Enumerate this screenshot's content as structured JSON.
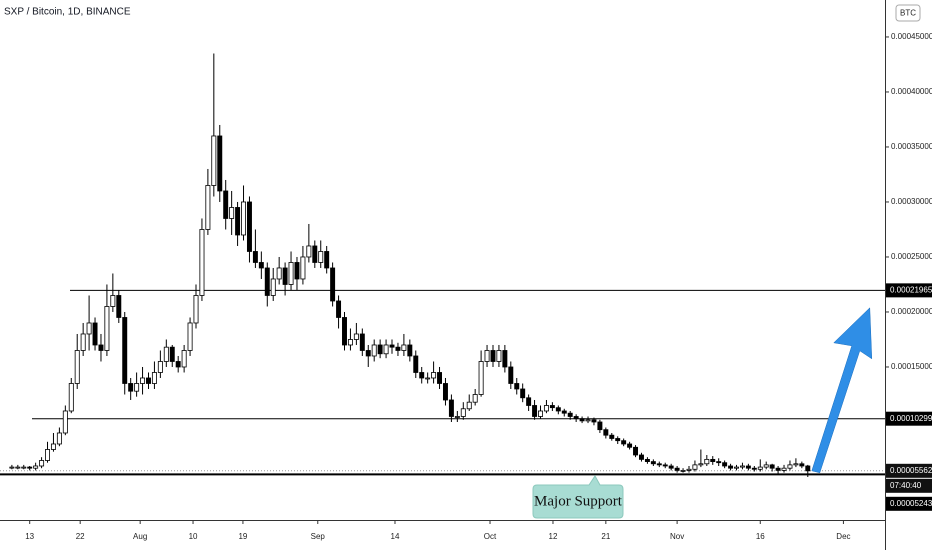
{
  "chart_data": {
    "type": "candlestick",
    "title": "SXP / Bitcoin, 1D, BINANCE",
    "currency": "BTC",
    "annotation": "Major Support",
    "countdown": "07:40:40",
    "last_price": 5.562e-05,
    "levels": [
      0.00021965,
      0.00010299,
      5.243e-05
    ],
    "up_color": "#ffffff",
    "down_color": "#000000",
    "arrow_color": "#2f8ee6",
    "xlim": [
      -2,
      147
    ],
    "xticks": [
      {
        "value": 3,
        "label": "13"
      },
      {
        "value": 11.5,
        "label": "22"
      },
      {
        "value": 21.6,
        "label": "Aug"
      },
      {
        "value": 30.5,
        "label": "10"
      },
      {
        "value": 38.9,
        "label": "19"
      },
      {
        "value": 51.5,
        "label": "Sep"
      },
      {
        "value": 64.5,
        "label": "14"
      },
      {
        "value": 80.5,
        "label": "Oct"
      },
      {
        "value": 91.1,
        "label": "12"
      },
      {
        "value": 100,
        "label": "21"
      },
      {
        "value": 112,
        "label": "Nov"
      },
      {
        "value": 126,
        "label": "16"
      },
      {
        "value": 140,
        "label": "Dec"
      }
    ],
    "ylim": [
      1.09e-05,
      0.0004836
    ],
    "yticks": [
      {
        "value": 0.00045,
        "label": "0.00045000"
      },
      {
        "value": 0.0004,
        "label": "0.00040000"
      },
      {
        "value": 0.00035,
        "label": "0.00035000"
      },
      {
        "value": 0.0003,
        "label": "0.00030000"
      },
      {
        "value": 0.00025,
        "label": "0.00025000"
      },
      {
        "value": 0.0002,
        "label": "0.00020000"
      },
      {
        "value": 0.00015,
        "label": "0.00015000"
      }
    ],
    "open": [
      5.9e-05,
      5.9e-05,
      5.9e-05,
      5.9e-05,
      5.8e-05,
      6e-05,
      6.5e-05,
      7.5e-05,
      8e-05,
      9e-05,
      0.00011,
      0.000135,
      0.000165,
      0.00018,
      0.00019,
      0.00017,
      0.000165,
      0.000205,
      0.000215,
      0.000195,
      0.000135,
      0.000128,
      0.000135,
      0.00014,
      0.000135,
      0.000145,
      0.000155,
      0.000168,
      0.000155,
      0.00015,
      0.000165,
      0.00019,
      0.000215,
      0.000275,
      0.000315,
      0.00036,
      0.00031,
      0.000285,
      0.000295,
      0.00027,
      0.0003,
      0.000255,
      0.000245,
      0.00024,
      0.000215,
      0.00023,
      0.00024,
      0.000225,
      0.000245,
      0.00023,
      0.00025,
      0.00026,
      0.000245,
      0.000255,
      0.00024,
      0.00021,
      0.000195,
      0.00017,
      0.000175,
      0.00018,
      0.000165,
      0.00016,
      0.00017,
      0.000162,
      0.00017,
      0.000168,
      0.000165,
      0.00017,
      0.00016,
      0.000145,
      0.00014,
      0.00014,
      0.000145,
      0.000135,
      0.00012,
      0.000105,
      0.000105,
      0.000112,
      0.000118,
      0.000125,
      0.000155,
      0.000165,
      0.000155,
      0.000165,
      0.00015,
      0.000135,
      0.00013,
      0.000122,
      0.000115,
      0.000105,
      0.00011,
      0.000115,
      0.000113,
      0.00011,
      0.000108,
      0.000105,
      0.000103,
      0.000101,
      0.000102,
      0.0001,
      9.3e-05,
      8.8e-05,
      8.5e-05,
      8.3e-05,
      8e-05,
      7.7e-05,
      7e-05,
      6.6e-05,
      6.4e-05,
      6.2e-05,
      6.1e-05,
      6e-05,
      5.8e-05,
      5.6e-05,
      5.6e-05,
      5.7e-05,
      6.1e-05,
      6.2e-05,
      6.6e-05,
      6.4e-05,
      6.3e-05,
      6e-05,
      5.8e-05,
      5.9e-05,
      6e-05,
      5.8e-05,
      5.7e-05,
      5.9e-05,
      6.1e-05,
      5.8e-05,
      5.6e-05,
      5.8e-05,
      6.1e-05,
      6.2e-05,
      6e-05
    ],
    "high": [
      6.1e-05,
      6.1e-05,
      6.1e-05,
      6e-05,
      6.3e-05,
      6.8e-05,
      8.2e-05,
      9e-05,
      9.5e-05,
      0.000115,
      0.00014,
      0.00018,
      0.00019,
      0.000215,
      0.000195,
      0.00018,
      0.000225,
      0.000235,
      0.00022,
      0.0002,
      0.00014,
      0.000145,
      0.00015,
      0.000145,
      0.000155,
      0.000165,
      0.000175,
      0.00017,
      0.00016,
      0.00017,
      0.000195,
      0.000225,
      0.000285,
      0.00033,
      0.000435,
      0.00037,
      0.00032,
      0.00031,
      0.0003,
      0.000315,
      0.000305,
      0.000275,
      0.000255,
      0.000245,
      0.00024,
      0.00025,
      0.000245,
      0.000255,
      0.00025,
      0.00026,
      0.00028,
      0.000265,
      0.000265,
      0.00026,
      0.000245,
      0.000215,
      0.0002,
      0.000185,
      0.00019,
      0.000185,
      0.00017,
      0.000175,
      0.000175,
      0.000175,
      0.000175,
      0.000172,
      0.00018,
      0.000175,
      0.000165,
      0.00015,
      0.000145,
      0.000155,
      0.00015,
      0.00014,
      0.000125,
      0.00011,
      0.000118,
      0.000125,
      0.00013,
      0.000165,
      0.00017,
      0.00017,
      0.00017,
      0.00017,
      0.000155,
      0.00014,
      0.000135,
      0.000125,
      0.00012,
      0.000115,
      0.00012,
      0.000118,
      0.000115,
      0.000112,
      0.00011,
      0.000107,
      0.000105,
      0.000105,
      0.000104,
      0.000102,
      9.5e-05,
      9e-05,
      8.7e-05,
      8.5e-05,
      8.2e-05,
      7.9e-05,
      7.2e-05,
      6.8e-05,
      6.6e-05,
      6.4e-05,
      6.3e-05,
      6.2e-05,
      6e-05,
      5.8e-05,
      6e-05,
      6.5e-05,
      7.5e-05,
      7e-05,
      6.9e-05,
      6.7e-05,
      6.5e-05,
      6.2e-05,
      6.1e-05,
      6.3e-05,
      6.2e-05,
      6e-05,
      6.6e-05,
      6.4e-05,
      6.2e-05,
      6e-05,
      6.1e-05,
      6.5e-05,
      6.7e-05,
      6.4e-05,
      6.1e-05
    ],
    "low": [
      5.7e-05,
      5.7e-05,
      5.7e-05,
      5.6e-05,
      5.6e-05,
      5.8e-05,
      6.3e-05,
      7.3e-05,
      7.8e-05,
      8.8e-05,
      0.000108,
      0.00013,
      0.00016,
      0.000165,
      0.000165,
      0.000155,
      0.00016,
      0.0002,
      0.00019,
      0.000125,
      0.00012,
      0.000123,
      0.000125,
      0.00013,
      0.00013,
      0.00014,
      0.00015,
      0.00015,
      0.000145,
      0.000145,
      0.00016,
      0.000185,
      0.00021,
      0.00027,
      0.000305,
      0.0003,
      0.000275,
      0.00027,
      0.00026,
      0.000265,
      0.000245,
      0.00024,
      0.00023,
      0.000205,
      0.00021,
      0.000225,
      0.000215,
      0.00022,
      0.00022,
      0.000225,
      0.000245,
      0.00024,
      0.00024,
      0.000235,
      0.000205,
      0.000185,
      0.000165,
      0.000165,
      0.00017,
      0.00016,
      0.00015,
      0.000155,
      0.000158,
      0.000158,
      0.000162,
      0.00016,
      0.00016,
      0.000155,
      0.00014,
      0.000135,
      0.000135,
      0.000135,
      0.00013,
      0.000115,
      0.0001,
      0.0001,
      0.000102,
      0.00011,
      0.000115,
      0.000123,
      0.00015,
      0.00015,
      0.00015,
      0.000145,
      0.00013,
      0.000125,
      0.000118,
      0.00011,
      0.000102,
      0.000103,
      0.000108,
      0.00011,
      0.000107,
      0.000105,
      0.000102,
      0.0001,
      9.9e-05,
      9.9e-05,
      9.7e-05,
      9e-05,
      8.5e-05,
      8.3e-05,
      8e-05,
      7.8e-05,
      7.5e-05,
      6.8e-05,
      6.4e-05,
      6.2e-05,
      6e-05,
      5.9e-05,
      5.8e-05,
      5.6e-05,
      5.4e-05,
      5.4e-05,
      5.4e-05,
      5.5e-05,
      5.9e-05,
      6e-05,
      6.1e-05,
      6e-05,
      5.8e-05,
      5.6e-05,
      5.6e-05,
      5.7e-05,
      5.6e-05,
      5.5e-05,
      5.5e-05,
      5.7e-05,
      5.5e-05,
      5.3e-05,
      5.4e-05,
      5.6e-05,
      5.9e-05,
      5.8e-05,
      5e-05
    ],
    "close": [
      5.9e-05,
      5.9e-05,
      5.9e-05,
      5.8e-05,
      6e-05,
      6.5e-05,
      7.5e-05,
      8e-05,
      9e-05,
      0.00011,
      0.000135,
      0.000165,
      0.00018,
      0.00019,
      0.00017,
      0.000165,
      0.000205,
      0.000215,
      0.000195,
      0.000135,
      0.000128,
      0.000135,
      0.00014,
      0.000135,
      0.000145,
      0.000155,
      0.000168,
      0.000155,
      0.00015,
      0.000165,
      0.00019,
      0.000215,
      0.000275,
      0.000315,
      0.00036,
      0.00031,
      0.000285,
      0.000295,
      0.00027,
      0.0003,
      0.000255,
      0.000245,
      0.00024,
      0.000215,
      0.00023,
      0.00024,
      0.000225,
      0.000245,
      0.00023,
      0.00025,
      0.00026,
      0.000245,
      0.000255,
      0.00024,
      0.00021,
      0.000195,
      0.00017,
      0.000175,
      0.00018,
      0.000165,
      0.00016,
      0.00017,
      0.000162,
      0.00017,
      0.000168,
      0.000165,
      0.00017,
      0.00016,
      0.000145,
      0.00014,
      0.00014,
      0.000145,
      0.000135,
      0.00012,
      0.000105,
      0.000105,
      0.000112,
      0.000118,
      0.000125,
      0.000155,
      0.000165,
      0.000155,
      0.000165,
      0.00015,
      0.000135,
      0.00013,
      0.000122,
      0.000115,
      0.000105,
      0.00011,
      0.000115,
      0.000113,
      0.00011,
      0.000108,
      0.000105,
      0.000103,
      0.000101,
      0.000102,
      0.0001,
      9.3e-05,
      8.8e-05,
      8.5e-05,
      8.3e-05,
      8e-05,
      7.7e-05,
      7e-05,
      6.6e-05,
      6.4e-05,
      6.2e-05,
      6.1e-05,
      6e-05,
      5.8e-05,
      5.6e-05,
      5.6e-05,
      5.7e-05,
      6.1e-05,
      6.2e-05,
      6.6e-05,
      6.4e-05,
      6.3e-05,
      6e-05,
      5.8e-05,
      5.9e-05,
      6e-05,
      5.8e-05,
      5.7e-05,
      5.9e-05,
      6.1e-05,
      5.8e-05,
      5.6e-05,
      5.8e-05,
      6.1e-05,
      6.2e-05,
      6e-05,
      5.56e-05
    ]
  }
}
